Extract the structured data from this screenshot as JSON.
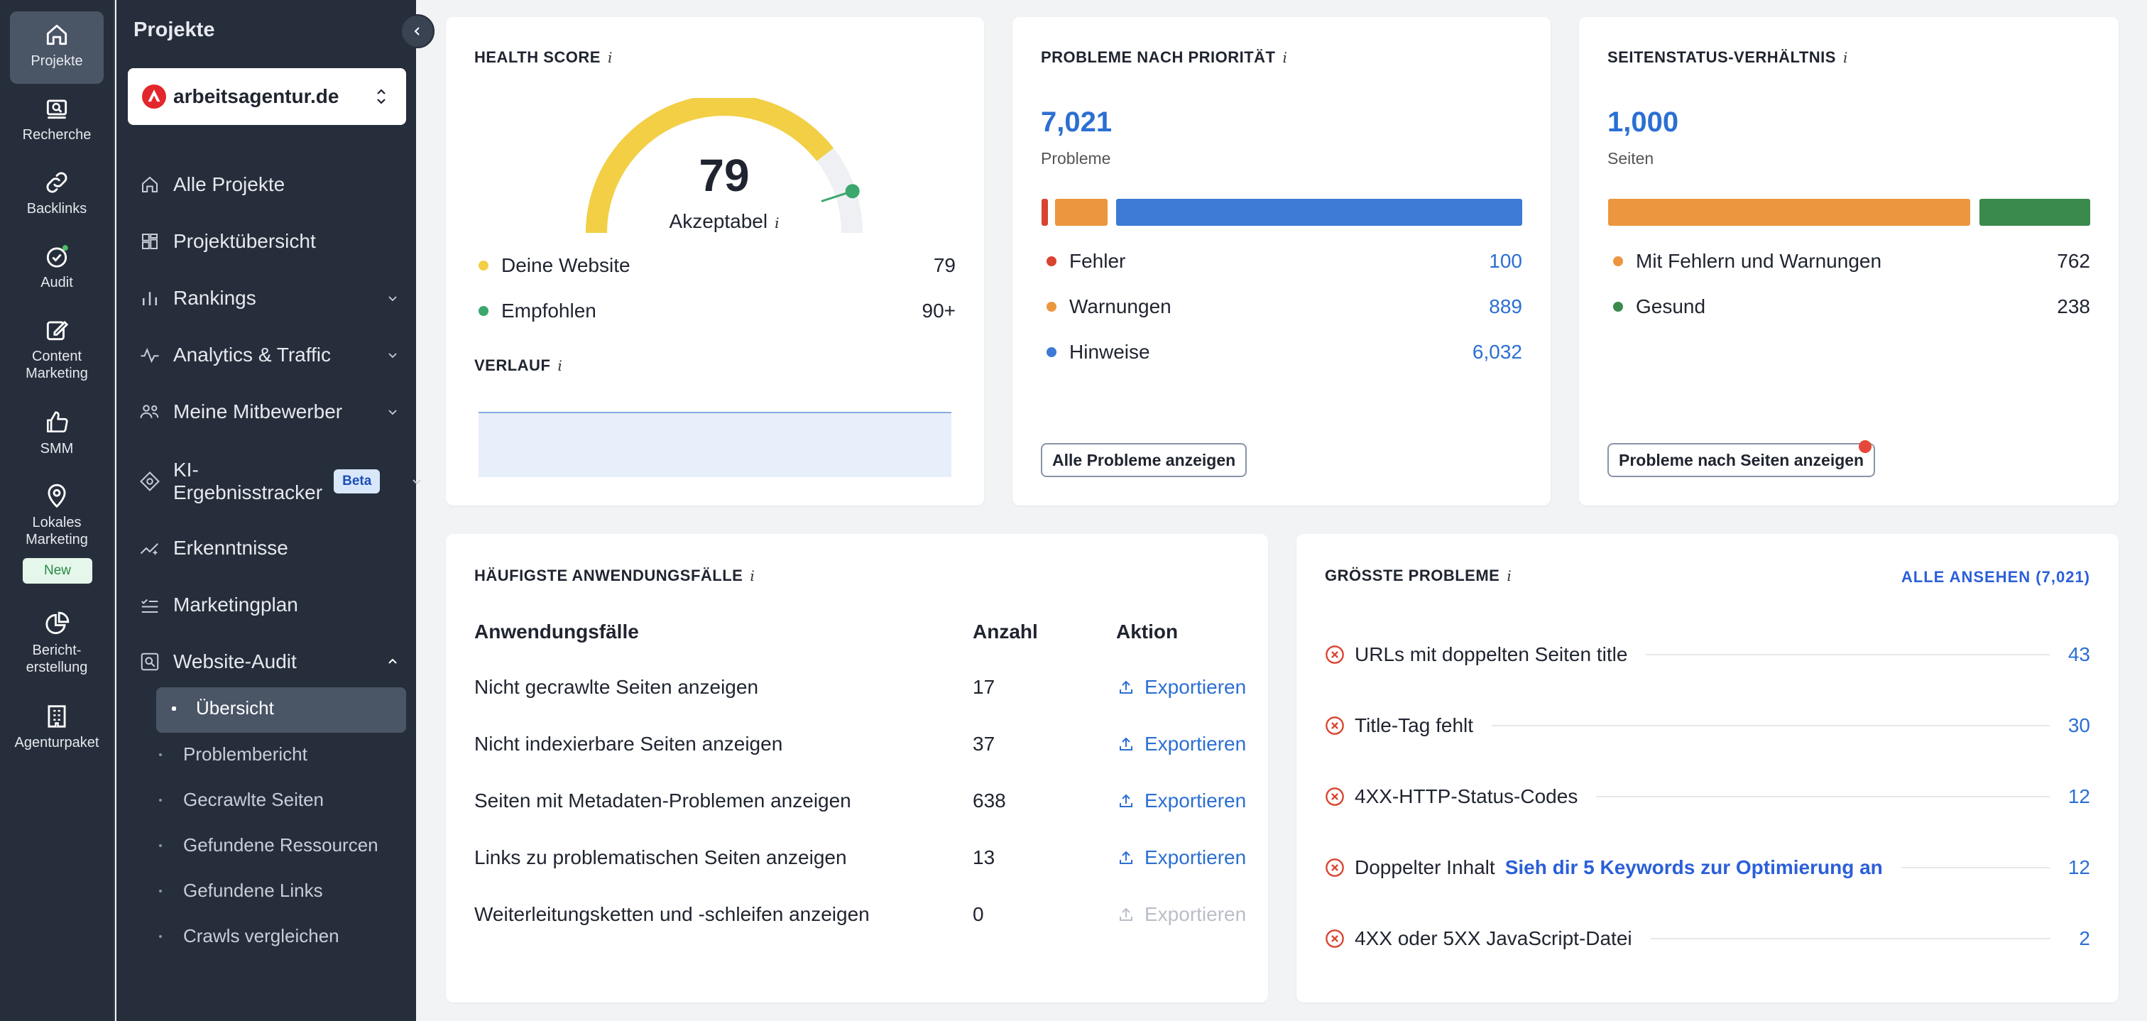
{
  "rail": {
    "items": [
      {
        "label": "Projekte",
        "icon": "home-icon"
      },
      {
        "label": "Recherche",
        "icon": "research-icon"
      },
      {
        "label": "Backlinks",
        "icon": "link-icon"
      },
      {
        "label": "Audit",
        "icon": "audit-check-icon"
      },
      {
        "label": "Content Marketing",
        "icon": "edit-icon"
      },
      {
        "label": "SMM",
        "icon": "thumbs-up-icon"
      },
      {
        "label": "Lokales Marketing",
        "icon": "location-pin-icon"
      },
      {
        "label": "Bericht-erstellung",
        "icon": "pie-chart-icon"
      },
      {
        "label": "Agenturpaket",
        "icon": "building-icon"
      }
    ],
    "new_badge": "New"
  },
  "sidebar": {
    "title": "Projekte",
    "project": "arbeitsagentur.de",
    "nav": [
      {
        "label": "Alle Projekte"
      },
      {
        "label": "Projektübersicht"
      },
      {
        "label": "Rankings"
      },
      {
        "label": "Analytics & Traffic"
      },
      {
        "label": "Meine Mitbewerber"
      },
      {
        "label": "KI-Ergebnisstracker",
        "line1": "KI-",
        "line2": "Ergebnisstracker",
        "badge": "Beta"
      },
      {
        "label": "Erkenntnisse"
      },
      {
        "label": "Marketingplan"
      },
      {
        "label": "Website-Audit"
      }
    ],
    "sub": [
      "Übersicht",
      "Problembericht",
      "Gecrawlte Seiten",
      "Gefundene Ressourcen",
      "Gefundene Links",
      "Crawls vergleichen"
    ]
  },
  "health": {
    "title": "HEALTH SCORE",
    "score": "79",
    "score_fraction": 0.79,
    "score_label": "Akzeptabel",
    "legend": [
      {
        "label": "Deine Website",
        "value": "79"
      },
      {
        "label": "Empfohlen",
        "value": "90+"
      }
    ],
    "verlauf_title": "VERLAUF"
  },
  "priority": {
    "title": "PROBLEME NACH PRIORITÄT",
    "total": "7,021",
    "total_label": "Probleme",
    "items": [
      {
        "label": "Fehler",
        "value": "100"
      },
      {
        "label": "Warnungen",
        "value": "889"
      },
      {
        "label": "Hinweise",
        "value": "6,032"
      }
    ],
    "button": "Alle Probleme anzeigen"
  },
  "status": {
    "title": "SEITENSTATUS-VERHÄLTNIS",
    "total": "1,000",
    "total_label": "Seiten",
    "items": [
      {
        "label": "Mit Fehlern und Warnungen",
        "value": "762"
      },
      {
        "label": "Gesund",
        "value": "238"
      }
    ],
    "button": "Probleme nach Seiten anzeigen"
  },
  "usecases": {
    "title": "HÄUFIGSTE ANWENDUNGSFÄLLE",
    "headers": [
      "Anwendungsfälle",
      "Anzahl",
      "Aktion"
    ],
    "rows": [
      {
        "label": "Nicht gecrawlte Seiten anzeigen",
        "count": "17",
        "action": "Exportieren"
      },
      {
        "label": "Nicht indexierbare Seiten anzeigen",
        "count": "37",
        "action": "Exportieren"
      },
      {
        "label": "Seiten mit Metadaten-Problemen anzeigen",
        "count": "638",
        "action": "Exportieren"
      },
      {
        "label": "Links zu problematischen Seiten anzeigen",
        "count": "13",
        "action": "Exportieren"
      },
      {
        "label": "Weiterleitungsketten und -schleifen anzeigen",
        "count": "0",
        "action": "Exportieren"
      }
    ]
  },
  "issues": {
    "title": "GRÖSSTE PROBLEME",
    "view_all": "ALLE ANSEHEN (7,021)",
    "items": [
      {
        "label": "URLs mit doppelten Seiten title",
        "count": "43"
      },
      {
        "label": "Title-Tag fehlt",
        "count": "30"
      },
      {
        "label": "4XX-HTTP-Status-Codes",
        "count": "12"
      },
      {
        "label": "Doppelter Inhalt",
        "link": "Sieh dir 5 Keywords zur Optimierung an",
        "count": "12"
      },
      {
        "label": "4XX oder 5XX JavaScript-Datei",
        "count": "2"
      }
    ]
  },
  "colors": {
    "sidebar_bg": "#262e3b",
    "accent_blue": "#2b6fd2",
    "gauge_yellow": "#f2cf45",
    "error_red": "#d9432f",
    "warning_orange": "#ec963f",
    "healthy_green": "#3b8a4d"
  }
}
